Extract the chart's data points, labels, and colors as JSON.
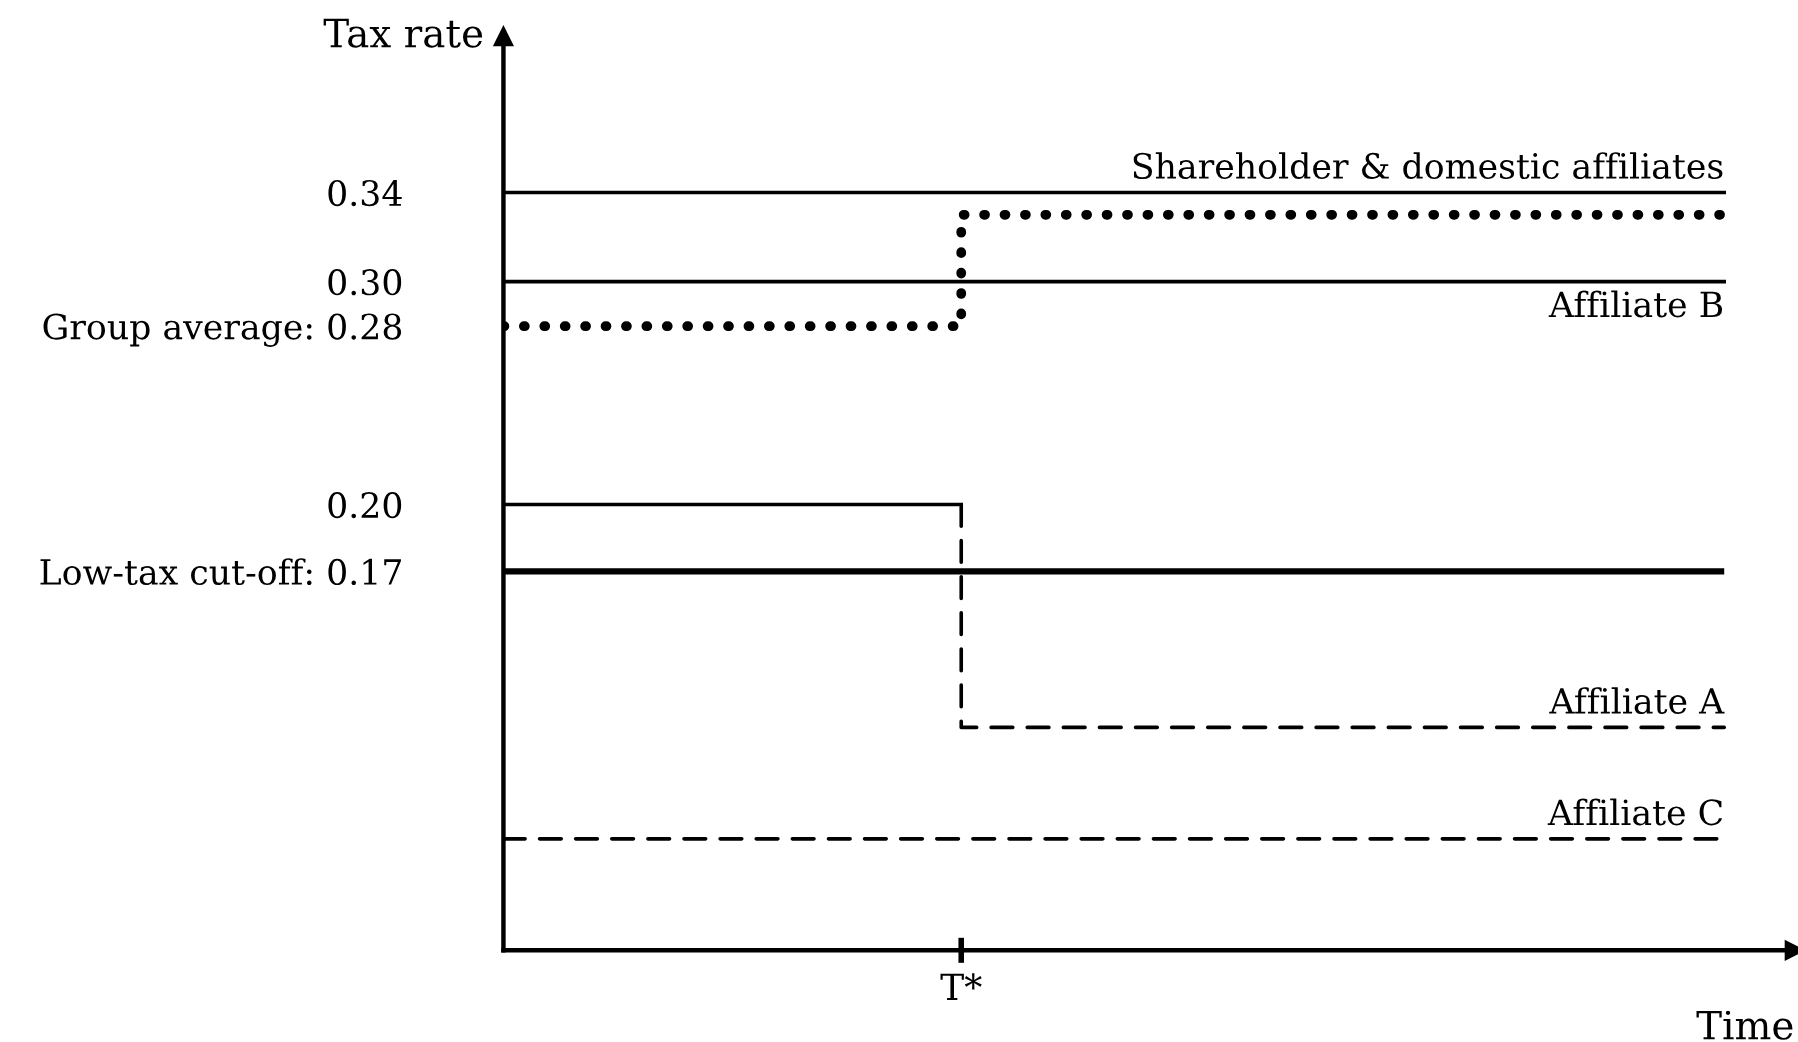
{
  "chart_data": {
    "type": "step",
    "xlabel": "Time",
    "ylabel": "Tax rate",
    "categories": [
      null,
      null,
      null,
      "T*",
      null,
      null,
      null,
      null,
      null
    ],
    "series": [
      {
        "name": "Shareholder & domestic affiliates",
        "color": "#000000",
        "line_style": "solid",
        "values": [
          0.34,
          0.34,
          0.34,
          0.34,
          0.34,
          0.34,
          0.34,
          0.34,
          0.34
        ]
      },
      {
        "name": "Affiliate B",
        "color": "#000000",
        "line_style": "solid",
        "values": [
          0.3,
          0.3,
          0.3,
          0.3,
          0.3,
          0.3,
          0.3,
          0.3,
          0.3
        ]
      },
      {
        "color": "#000000",
        "line_style": "dotted",
        "values": [
          0.28,
          0.28,
          0.28,
          0.28,
          0.33,
          0.33,
          0.33,
          0.33,
          0.33
        ]
      },
      {
        "color": "#000000",
        "line_style": "solid",
        "values": [
          0.2,
          0.2,
          0.2,
          0.2,
          null,
          null,
          null,
          null,
          null
        ]
      },
      {
        "name": "Affiliate A",
        "color": "#000000",
        "line_style": "dashed",
        "values": [
          null,
          null,
          null,
          0.2,
          0.1,
          0.1,
          0.1,
          0.1,
          0.1
        ]
      },
      {
        "name": "Affiliate C",
        "color": "#000000",
        "line_style": "dashed",
        "values": [
          0.05,
          0.05,
          0.05,
          0.05,
          0.05,
          0.05,
          0.05,
          0.05,
          0.05
        ]
      }
    ],
    "ref_lines": [
      {
        "axis": "y",
        "value": 0.17,
        "color": "#000000",
        "line_style": "solid"
      }
    ],
    "ylim": [
      0,
      0.41
    ],
    "yticks": [
      0.34,
      {
        "value": 0.3,
        "label": "0.30"
      },
      {
        "value": 0.28,
        "label": "Group average: 0.28"
      },
      {
        "value": 0.2,
        "label": "0.20"
      },
      {
        "value": 0.17,
        "label": "Low-tax cut-off: 0.17"
      }
    ],
    "grid": false,
    "legend": false
  }
}
